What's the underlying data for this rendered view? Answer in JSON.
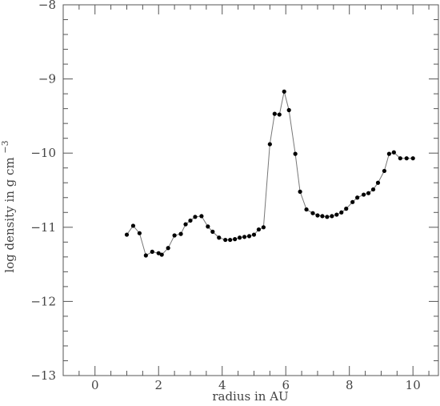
{
  "chart_data": {
    "type": "line",
    "title": "",
    "xlabel": "radius in AU",
    "ylabel": "log density in g cm",
    "ylabel_superscript": "−3",
    "xlim": [
      -1,
      10.8
    ],
    "ylim": [
      -13,
      -8
    ],
    "xticks": [
      0,
      2,
      4,
      6,
      8,
      10
    ],
    "xtick_labels": [
      "0",
      "2",
      "4",
      "6",
      "8",
      "10"
    ],
    "yticks": [
      -13,
      -12,
      -11,
      -10,
      -9,
      -8
    ],
    "ytick_labels": [
      "−13",
      "−12",
      "−11",
      "−10",
      "−9",
      "−8"
    ],
    "grid": false,
    "series": [
      {
        "x": [
          1.0,
          1.2,
          1.4,
          1.6,
          1.8,
          2.0,
          2.1,
          2.3,
          2.5,
          2.7,
          2.85,
          3.0,
          3.15,
          3.35,
          3.55,
          3.7,
          3.9,
          4.1,
          4.25,
          4.4,
          4.55,
          4.7,
          4.85,
          5.0,
          5.15,
          5.3,
          5.5,
          5.65,
          5.8,
          5.95,
          6.1,
          6.3,
          6.45,
          6.65,
          6.85,
          7.0,
          7.15,
          7.3,
          7.45,
          7.6,
          7.75,
          7.9,
          8.1,
          8.25,
          8.45,
          8.6,
          8.75,
          8.9,
          9.1,
          9.25,
          9.4,
          9.6,
          9.8,
          10.0
        ],
        "y": [
          -11.1,
          -10.98,
          -11.08,
          -11.38,
          -11.33,
          -11.35,
          -11.37,
          -11.28,
          -11.11,
          -11.09,
          -10.96,
          -10.91,
          -10.86,
          -10.85,
          -10.99,
          -11.06,
          -11.14,
          -11.17,
          -11.17,
          -11.16,
          -11.14,
          -11.13,
          -11.12,
          -11.1,
          -11.03,
          -11.0,
          -9.88,
          -9.47,
          -9.48,
          -9.17,
          -9.42,
          -10.01,
          -10.52,
          -10.76,
          -10.81,
          -10.84,
          -10.85,
          -10.86,
          -10.85,
          -10.83,
          -10.8,
          -10.75,
          -10.66,
          -10.6,
          -10.56,
          -10.54,
          -10.49,
          -10.4,
          -10.24,
          -10.01,
          -9.99,
          -10.07,
          -10.07,
          -10.07
        ]
      }
    ]
  }
}
